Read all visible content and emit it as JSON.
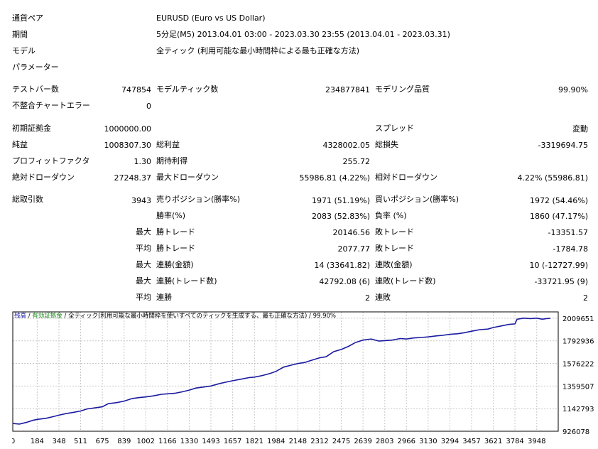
{
  "header": {
    "symbol_label": "通貨ペア",
    "symbol_value": "EURUSD (Euro vs US Dollar)",
    "period_label": "期間",
    "period_value": "5分足(M5) 2013.04.01 03:00 - 2023.03.30 23:55 (2013.04.01 - 2023.03.31)",
    "model_label": "モデル",
    "model_value": "全ティック (利用可能な最小時間枠による最も正確な方法)",
    "params_label": "パラメーター"
  },
  "stats": {
    "bars_label": "テストバー数",
    "bars_value": "747854",
    "ticks_label": "モデルティック数",
    "ticks_value": "234877841",
    "quality_label": "モデリング品質",
    "quality_value": "99.90%",
    "mismatch_label": "不整合チャートエラー",
    "mismatch_value": "0",
    "deposit_label": "初期証拠金",
    "deposit_value": "1000000.00",
    "spread_label": "スプレッド",
    "spread_value": "変動",
    "net_label": "純益",
    "net_value": "1008307.30",
    "gross_profit_label": "総利益",
    "gross_profit_value": "4328002.05",
    "gross_loss_label": "総損失",
    "gross_loss_value": "-3319694.75",
    "pf_label": "プロフィットファクタ",
    "pf_value": "1.30",
    "payoff_label": "期待利得",
    "payoff_value": "255.72",
    "abs_dd_label": "絶対ドローダウン",
    "abs_dd_value": "27248.37",
    "max_dd_label": "最大ドローダウン",
    "max_dd_value": "55986.81 (4.22%)",
    "rel_dd_label": "相対ドローダウン",
    "rel_dd_value": "4.22% (55986.81)",
    "trades_label": "総取引数",
    "trades_value": "3943",
    "short_label": "売りポジション(勝率%)",
    "short_value": "1971 (51.19%)",
    "long_label": "買いポジション(勝率%)",
    "long_value": "1972 (54.46%)",
    "win_pct_label": "勝率(%)",
    "win_pct_value": "2083 (52.83%)",
    "loss_pct_label": "負率 (%)",
    "loss_pct_value": "1860 (47.17%)",
    "max_word": "最大",
    "avg_word": "平均",
    "largest_win_label": "勝トレード",
    "largest_win_value": "20146.56",
    "largest_loss_label": "敗トレード",
    "largest_loss_value": "-13351.57",
    "avg_win_label": "勝トレード",
    "avg_win_value": "2077.77",
    "avg_loss_label": "敗トレード",
    "avg_loss_value": "-1784.78",
    "cons_wins_label": "連勝(金額)",
    "cons_wins_value": "14 (33641.82)",
    "cons_losses_label": "連敗(金額)",
    "cons_losses_value": "10 (-12727.99)",
    "cons_profit_label": "連勝(トレード数)",
    "cons_profit_value": "42792.08 (6)",
    "cons_loss_label": "連敗(トレード数)",
    "cons_loss_value": "-33721.95 (9)",
    "avg_cons_win_label": "連勝",
    "avg_cons_win_value": "2",
    "avg_cons_loss_label": "連敗",
    "avg_cons_loss_value": "2"
  },
  "chart_legend": {
    "balance": "残高",
    "sep1": " / ",
    "equity": "有効証拠金",
    "sep2": " / ",
    "model": "全ティック(利用可能な最小時間枠を使いすべてのティックを生成する、最も正確な方法)",
    "sep3": " / ",
    "quality": "99.90%"
  },
  "colors": {
    "balance": "#1a1aa0",
    "balance_legend": "#1a1aa0",
    "equity_legend": "#228b22",
    "grid": "#c8c8c8",
    "frame": "#000000"
  },
  "chart_data": {
    "type": "line",
    "title": "",
    "xlabel": "",
    "ylabel": "",
    "x_ticks": [
      0,
      184,
      348,
      511,
      675,
      839,
      1002,
      1166,
      1330,
      1493,
      1657,
      1821,
      1984,
      2148,
      2312,
      2475,
      2639,
      2803,
      2966,
      3130,
      3294,
      3457,
      3621,
      3784,
      3948
    ],
    "y_ticks": [
      926078,
      1142793,
      1359507,
      1576222,
      1792936,
      2009651
    ],
    "xlim": [
      0,
      4110
    ],
    "ylim": [
      926078,
      2070000
    ],
    "grid": true,
    "series": [
      {
        "name": "残高",
        "x": [
          0,
          50,
          100,
          150,
          184,
          250,
          300,
          348,
          400,
          450,
          511,
          560,
          620,
          675,
          720,
          780,
          839,
          900,
          960,
          1002,
          1060,
          1120,
          1166,
          1220,
          1280,
          1330,
          1380,
          1440,
          1493,
          1550,
          1600,
          1657,
          1720,
          1780,
          1821,
          1880,
          1940,
          1984,
          2040,
          2100,
          2148,
          2200,
          2260,
          2312,
          2360,
          2420,
          2475,
          2530,
          2580,
          2639,
          2700,
          2760,
          2803,
          2860,
          2920,
          2966,
          3020,
          3080,
          3130,
          3190,
          3240,
          3294,
          3350,
          3400,
          3457,
          3520,
          3580,
          3621,
          3680,
          3740,
          3784,
          3800,
          3850,
          3900,
          3948,
          3990,
          4020,
          4050
        ],
        "y": [
          1000000,
          995000,
          1010000,
          1030000,
          1040000,
          1050000,
          1065000,
          1080000,
          1095000,
          1105000,
          1120000,
          1140000,
          1150000,
          1160000,
          1190000,
          1200000,
          1215000,
          1240000,
          1250000,
          1255000,
          1265000,
          1280000,
          1285000,
          1290000,
          1305000,
          1320000,
          1340000,
          1350000,
          1360000,
          1380000,
          1395000,
          1410000,
          1425000,
          1440000,
          1445000,
          1460000,
          1480000,
          1500000,
          1540000,
          1560000,
          1575000,
          1585000,
          1610000,
          1630000,
          1640000,
          1690000,
          1710000,
          1740000,
          1775000,
          1800000,
          1810000,
          1790000,
          1795000,
          1800000,
          1815000,
          1810000,
          1820000,
          1825000,
          1830000,
          1840000,
          1845000,
          1855000,
          1860000,
          1870000,
          1885000,
          1900000,
          1905000,
          1920000,
          1935000,
          1950000,
          1955000,
          2000000,
          2010000,
          2005000,
          2010000,
          2000000,
          2005000,
          2008000
        ]
      }
    ]
  }
}
